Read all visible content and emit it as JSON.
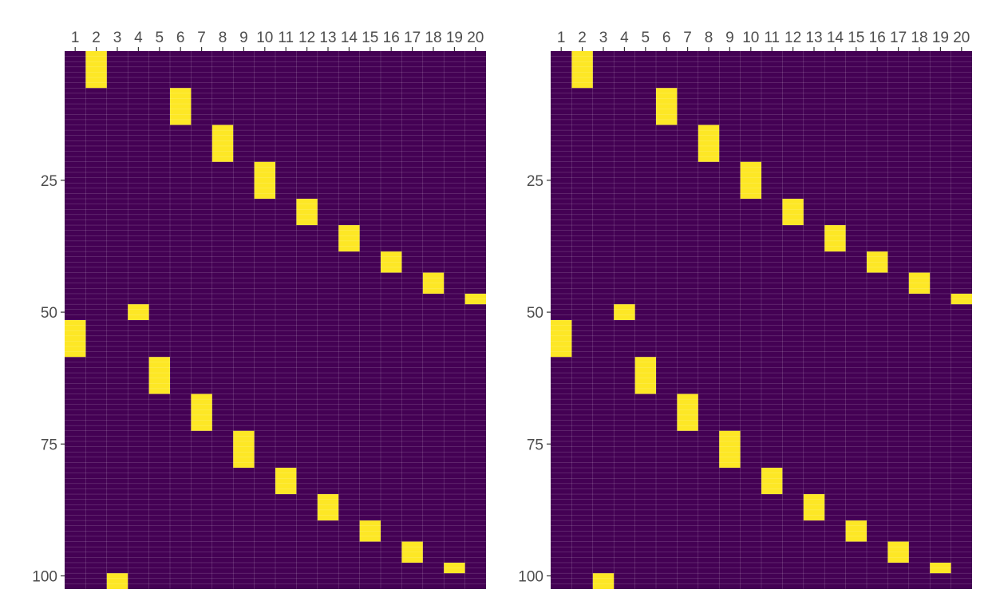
{
  "chart_data": [
    {
      "type": "heatmap",
      "title": "",
      "xlabel": "",
      "ylabel": "",
      "x_categories": [
        "1",
        "2",
        "3",
        "4",
        "5",
        "6",
        "7",
        "8",
        "9",
        "10",
        "11",
        "12",
        "13",
        "14",
        "15",
        "16",
        "17",
        "18",
        "19",
        "20"
      ],
      "y_range": [
        1,
        102
      ],
      "y_ticks": [
        25,
        50,
        75,
        100
      ],
      "x_axis_position": "top",
      "y_reversed": true,
      "grid": true,
      "colors": {
        "low": "#440154",
        "high": "#FDE725",
        "grid": "#6e4c86"
      },
      "high_cells": [
        {
          "x": 2,
          "y_start": 1,
          "y_end": 7
        },
        {
          "x": 6,
          "y_start": 8,
          "y_end": 14
        },
        {
          "x": 8,
          "y_start": 15,
          "y_end": 21
        },
        {
          "x": 10,
          "y_start": 22,
          "y_end": 28
        },
        {
          "x": 12,
          "y_start": 29,
          "y_end": 33
        },
        {
          "x": 14,
          "y_start": 34,
          "y_end": 38
        },
        {
          "x": 16,
          "y_start": 39,
          "y_end": 42
        },
        {
          "x": 18,
          "y_start": 43,
          "y_end": 46
        },
        {
          "x": 20,
          "y_start": 47,
          "y_end": 48
        },
        {
          "x": 4,
          "y_start": 49,
          "y_end": 51
        },
        {
          "x": 1,
          "y_start": 52,
          "y_end": 58
        },
        {
          "x": 5,
          "y_start": 59,
          "y_end": 65
        },
        {
          "x": 7,
          "y_start": 66,
          "y_end": 72
        },
        {
          "x": 9,
          "y_start": 73,
          "y_end": 79
        },
        {
          "x": 11,
          "y_start": 80,
          "y_end": 84
        },
        {
          "x": 13,
          "y_start": 85,
          "y_end": 89
        },
        {
          "x": 15,
          "y_start": 90,
          "y_end": 93
        },
        {
          "x": 17,
          "y_start": 94,
          "y_end": 97
        },
        {
          "x": 19,
          "y_start": 98,
          "y_end": 99
        },
        {
          "x": 3,
          "y_start": 100,
          "y_end": 102
        }
      ]
    },
    {
      "type": "heatmap",
      "title": "",
      "xlabel": "",
      "ylabel": "",
      "x_categories": [
        "1",
        "2",
        "3",
        "4",
        "5",
        "6",
        "7",
        "8",
        "9",
        "10",
        "11",
        "12",
        "13",
        "14",
        "15",
        "16",
        "17",
        "18",
        "19",
        "20"
      ],
      "y_range": [
        1,
        102
      ],
      "y_ticks": [
        25,
        50,
        75,
        100
      ],
      "x_axis_position": "top",
      "y_reversed": true,
      "grid": true,
      "colors": {
        "low": "#440154",
        "high": "#FDE725",
        "grid": "#6e4c86"
      },
      "high_cells": [
        {
          "x": 2,
          "y_start": 1,
          "y_end": 7
        },
        {
          "x": 6,
          "y_start": 8,
          "y_end": 14
        },
        {
          "x": 8,
          "y_start": 15,
          "y_end": 21
        },
        {
          "x": 10,
          "y_start": 22,
          "y_end": 28
        },
        {
          "x": 12,
          "y_start": 29,
          "y_end": 33
        },
        {
          "x": 14,
          "y_start": 34,
          "y_end": 38
        },
        {
          "x": 16,
          "y_start": 39,
          "y_end": 42
        },
        {
          "x": 18,
          "y_start": 43,
          "y_end": 46
        },
        {
          "x": 20,
          "y_start": 47,
          "y_end": 48
        },
        {
          "x": 4,
          "y_start": 49,
          "y_end": 51
        },
        {
          "x": 1,
          "y_start": 52,
          "y_end": 58
        },
        {
          "x": 5,
          "y_start": 59,
          "y_end": 65
        },
        {
          "x": 7,
          "y_start": 66,
          "y_end": 72
        },
        {
          "x": 9,
          "y_start": 73,
          "y_end": 79
        },
        {
          "x": 11,
          "y_start": 80,
          "y_end": 84
        },
        {
          "x": 13,
          "y_start": 85,
          "y_end": 89
        },
        {
          "x": 15,
          "y_start": 90,
          "y_end": 93
        },
        {
          "x": 17,
          "y_start": 94,
          "y_end": 97
        },
        {
          "x": 19,
          "y_start": 98,
          "y_end": 99
        },
        {
          "x": 3,
          "y_start": 100,
          "y_end": 102
        }
      ]
    }
  ]
}
